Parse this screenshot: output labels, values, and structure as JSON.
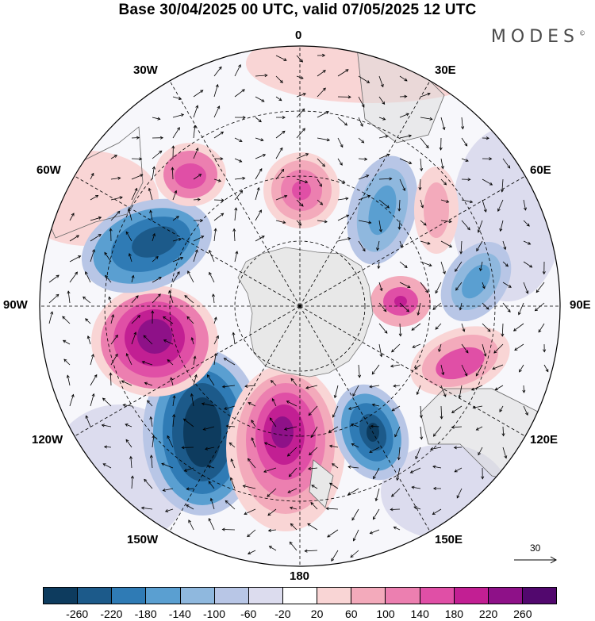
{
  "header": {
    "title": "Base 30/04/2025 00 UTC, valid 07/05/2025 12 UTC",
    "logo_text": "MODES",
    "logo_mark": "©"
  },
  "longitude_labels": {
    "lon_0": "0",
    "lon_30e": "30E",
    "lon_60e": "60E",
    "lon_90e": "90E",
    "lon_120e": "120E",
    "lon_150e": "150E",
    "lon_180": "180",
    "lon_150w": "150W",
    "lon_120w": "120W",
    "lon_90w": "90W",
    "lon_60w": "60W",
    "lon_30w": "30W"
  },
  "vector_reference": {
    "label": "30"
  },
  "colorbar": {
    "colors": [
      "#0d3b5e",
      "#1c5a8a",
      "#2f7bb5",
      "#5a9fd1",
      "#8fb8de",
      "#b8c6e6",
      "#dcdcee",
      "#ffffff",
      "#f9d5d5",
      "#f3aabb",
      "#ec7fb0",
      "#e04fa6",
      "#c21f93",
      "#8e1188",
      "#52086e"
    ],
    "ticks": [
      "-260",
      "-220",
      "-180",
      "-140",
      "-100",
      "-60",
      "-20",
      "20",
      "60",
      "100",
      "140",
      "180",
      "220",
      "260"
    ]
  },
  "anomaly_field": {
    "units_hint": "geopotential height anomaly",
    "centers": [
      {
        "name": "south-pacific-negative",
        "value": -280
      },
      {
        "name": "ross-sea-positive",
        "value": 260
      },
      {
        "name": "amundsen-positive",
        "value": 260
      },
      {
        "name": "drake-negative",
        "value": -220
      },
      {
        "name": "tasman-negative",
        "value": -240
      },
      {
        "name": "atlantic-positive",
        "value": 140
      },
      {
        "name": "south-atlantic-negative",
        "value": -120
      },
      {
        "name": "indian-ocean-positive",
        "value": 160
      },
      {
        "name": "weddell-positive",
        "value": 140
      },
      {
        "name": "kerguelen-negative",
        "value": -100
      }
    ]
  }
}
